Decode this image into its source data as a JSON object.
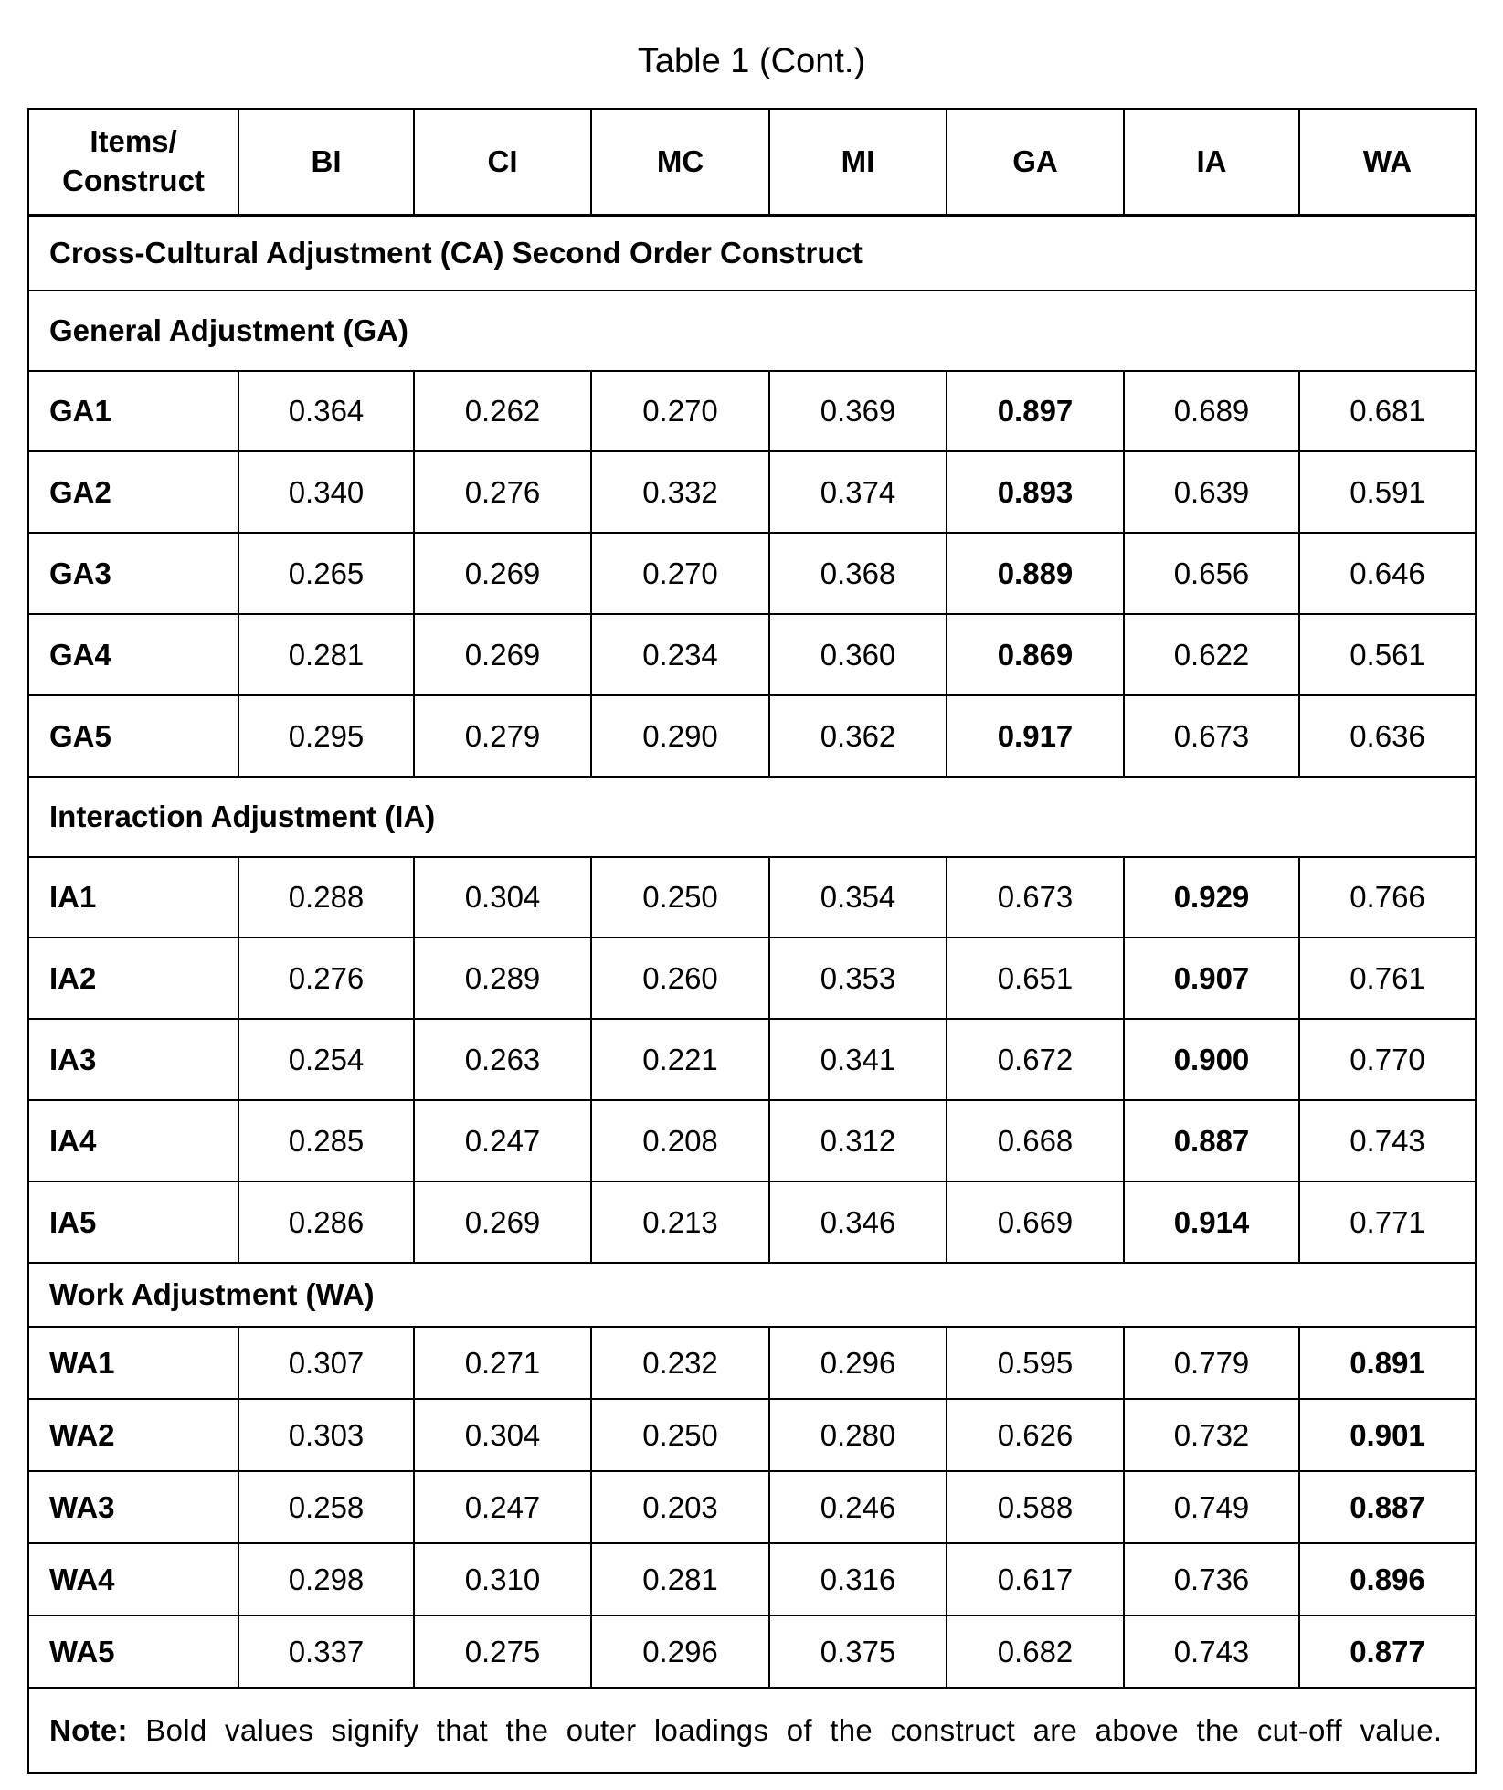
{
  "title": "Table 1 (Cont.)",
  "columns": [
    "Items/ Construct",
    "BI",
    "CI",
    "MC",
    "MI",
    "GA",
    "IA",
    "WA"
  ],
  "super_section": "Cross-Cultural Adjustment (CA) Second Order Construct",
  "sections": [
    {
      "label": "General Adjustment (GA)",
      "bold_column": "GA",
      "rows": [
        {
          "item": "GA1",
          "values": [
            "0.364",
            "0.262",
            "0.270",
            "0.369",
            "0.897",
            "0.689",
            "0.681"
          ]
        },
        {
          "item": "GA2",
          "values": [
            "0.340",
            "0.276",
            "0.332",
            "0.374",
            "0.893",
            "0.639",
            "0.591"
          ]
        },
        {
          "item": "GA3",
          "values": [
            "0.265",
            "0.269",
            "0.270",
            "0.368",
            "0.889",
            "0.656",
            "0.646"
          ]
        },
        {
          "item": "GA4",
          "values": [
            "0.281",
            "0.269",
            "0.234",
            "0.360",
            "0.869",
            "0.622",
            "0.561"
          ]
        },
        {
          "item": "GA5",
          "values": [
            "0.295",
            "0.279",
            "0.290",
            "0.362",
            "0.917",
            "0.673",
            "0.636"
          ]
        }
      ]
    },
    {
      "label": "Interaction Adjustment (IA)",
      "bold_column": "IA",
      "rows": [
        {
          "item": "IA1",
          "values": [
            "0.288",
            "0.304",
            "0.250",
            "0.354",
            "0.673",
            "0.929",
            "0.766"
          ]
        },
        {
          "item": "IA2",
          "values": [
            "0.276",
            "0.289",
            "0.260",
            "0.353",
            "0.651",
            "0.907",
            "0.761"
          ]
        },
        {
          "item": "IA3",
          "values": [
            "0.254",
            "0.263",
            "0.221",
            "0.341",
            "0.672",
            "0.900",
            "0.770"
          ]
        },
        {
          "item": "IA4",
          "values": [
            "0.285",
            "0.247",
            "0.208",
            "0.312",
            "0.668",
            "0.887",
            "0.743"
          ]
        },
        {
          "item": "IA5",
          "values": [
            "0.286",
            "0.269",
            "0.213",
            "0.346",
            "0.669",
            "0.914",
            "0.771"
          ]
        }
      ]
    },
    {
      "label": "Work Adjustment (WA)",
      "bold_column": "WA",
      "rows": [
        {
          "item": "WA1",
          "values": [
            "0.307",
            "0.271",
            "0.232",
            "0.296",
            "0.595",
            "0.779",
            "0.891"
          ]
        },
        {
          "item": "WA2",
          "values": [
            "0.303",
            "0.304",
            "0.250",
            "0.280",
            "0.626",
            "0.732",
            "0.901"
          ]
        },
        {
          "item": "WA3",
          "values": [
            "0.258",
            "0.247",
            "0.203",
            "0.246",
            "0.588",
            "0.749",
            "0.887"
          ]
        },
        {
          "item": "WA4",
          "values": [
            "0.298",
            "0.310",
            "0.281",
            "0.316",
            "0.617",
            "0.736",
            "0.896"
          ]
        },
        {
          "item": "WA5",
          "values": [
            "0.337",
            "0.275",
            "0.296",
            "0.375",
            "0.682",
            "0.743",
            "0.877"
          ]
        }
      ]
    }
  ],
  "note": {
    "label": "Note:",
    "text": "Bold values signify that the outer loadings of the construct are above the cut-off value."
  }
}
